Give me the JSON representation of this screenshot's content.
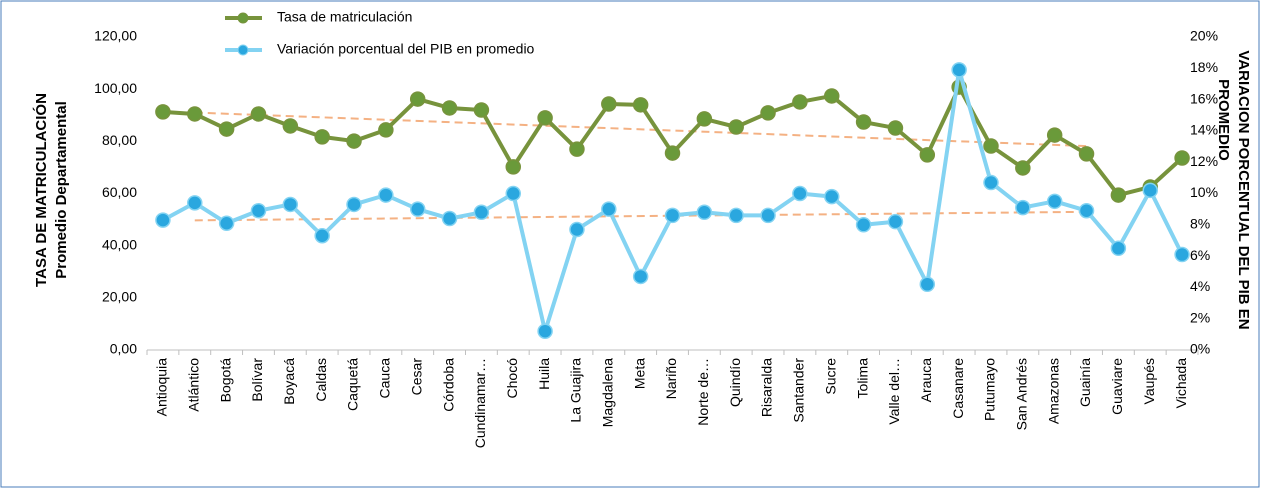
{
  "chart_data": {
    "type": "line",
    "categories": [
      "Antioquia",
      "Atlántico",
      "Bogotá",
      "Bolívar",
      "Boyacá",
      "Caldas",
      "Caquetá",
      "Cauca",
      "Cesar",
      "Córdoba",
      "Cundinamar…",
      "Chocó",
      "Huila",
      "La Guajira",
      "Magdalena",
      "Meta",
      "Nariño",
      "Norte de…",
      "Quindío",
      "Risaralda",
      "Santander",
      "Sucre",
      "Tolima",
      "Valle del…",
      "Arauca",
      "Casanare",
      "Putumayo",
      "San Andrés",
      "Amazonas",
      "Guainía",
      "Guaviare",
      "Vaupés",
      "Vichada"
    ],
    "series": [
      {
        "name": "Tasa de matriculación",
        "color": "#77933c",
        "marker_color": "#6a9a3a",
        "values": [
          91.3,
          90.5,
          84.7,
          90.5,
          85.9,
          81.7,
          80.1,
          84.4,
          96.2,
          92.8,
          92.0,
          70.2,
          89.0,
          77.0,
          94.3,
          94.0,
          75.5,
          88.6,
          85.5,
          90.9,
          95.1,
          97.4,
          87.4,
          85.1,
          74.8,
          100.8,
          78.2,
          69.8,
          82.4,
          75.2,
          59.4,
          62.5,
          73.6
        ]
      },
      {
        "name": "Variación porcentual del PIB en promedio",
        "color": "#83d3f2",
        "marker_color": "#2aa7df",
        "axis": "y2",
        "values": [
          8.3,
          9.4,
          8.1,
          8.9,
          9.3,
          7.3,
          9.3,
          9.9,
          9.0,
          8.4,
          8.8,
          10.0,
          1.2,
          7.7,
          9.0,
          4.7,
          8.6,
          8.8,
          8.6,
          8.6,
          10.0,
          9.8,
          8.0,
          8.2,
          4.2,
          17.9,
          10.7,
          9.1,
          9.5,
          8.9,
          6.5,
          10.2,
          6.1
        ]
      }
    ],
    "ylim": [
      0,
      120
    ],
    "yticks": [
      {
        "value": 0,
        "label": "0,00"
      },
      {
        "value": 20,
        "label": "20,00"
      },
      {
        "value": 40,
        "label": "40,00"
      },
      {
        "value": 60,
        "label": "60,00"
      },
      {
        "value": 80,
        "label": "80,00"
      },
      {
        "value": 100,
        "label": "100,00"
      },
      {
        "value": 120,
        "label": "120,00"
      }
    ],
    "y2lim": [
      0,
      20
    ],
    "y2ticks": [
      {
        "value": 0,
        "label": "0%"
      },
      {
        "value": 2,
        "label": "2%"
      },
      {
        "value": 4,
        "label": "4%"
      },
      {
        "value": 6,
        "label": "6%"
      },
      {
        "value": 8,
        "label": "8%"
      },
      {
        "value": 10,
        "label": "10%"
      },
      {
        "value": 12,
        "label": "12%"
      },
      {
        "value": 14,
        "label": "14%"
      },
      {
        "value": 16,
        "label": "16%"
      },
      {
        "value": 18,
        "label": "18%"
      },
      {
        "value": 20,
        "label": "20%"
      }
    ],
    "y_label": [
      "TASA DE MATRICULACIÓN",
      "Promedio Departamental"
    ],
    "y2_label": [
      "VARIACION PORCENTUAL DEL PIB EN",
      "PROMEDIO"
    ],
    "trendline": true,
    "trendline_color": "#f4b183",
    "grid": false
  }
}
